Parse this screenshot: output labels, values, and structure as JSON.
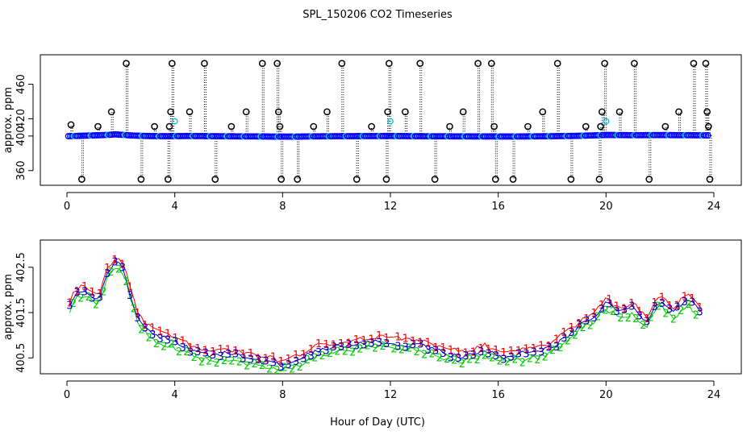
{
  "figure": {
    "title": "SPL_150206  CO2 Timeseries",
    "xlabel": "Hour of Day (UTC)"
  },
  "colors": {
    "circle_main": "#0000ff",
    "circle_alt": "#00c8c8",
    "spike": "#000000",
    "series1": "#ff0000",
    "series2": "#00cc00",
    "series3": "#0000cc",
    "inner_line": "#00c8c8"
  },
  "chart_data": [
    {
      "type": "scatter",
      "title": "SPL_150206  CO2 Timeseries",
      "xlabel": "",
      "ylabel": "approx. ppm",
      "xlim": [
        0,
        24
      ],
      "ylim": [
        343,
        494
      ],
      "xticks": [
        0,
        4,
        8,
        12,
        16,
        20,
        24
      ],
      "yticks": [
        360,
        400,
        420,
        460
      ],
      "ytick_labels": [
        "360",
        "400",
        "420",
        "460"
      ],
      "baseline": {
        "hours": [
          0.0,
          0.5,
          1.0,
          1.5,
          1.8,
          2.0,
          2.5,
          3.0,
          3.5,
          4.0,
          4.5,
          5.0,
          6.0,
          7.0,
          7.9,
          8.0,
          8.5,
          9.0,
          10.0,
          11.0,
          12.0,
          13.0,
          14.0,
          15.0,
          15.8,
          16.0,
          17.0,
          18.0,
          19.0,
          19.8,
          20.0,
          21.0,
          22.0,
          23.0,
          23.8
        ],
        "ppm": [
          400.8,
          401.2,
          401.6,
          402.0,
          402.6,
          402.2,
          401.4,
          401.0,
          400.8,
          400.9,
          401.0,
          400.9,
          400.7,
          400.6,
          400.4,
          400.5,
          400.4,
          400.6,
          400.8,
          400.9,
          401.0,
          400.8,
          400.7,
          400.6,
          400.6,
          400.5,
          400.6,
          400.8,
          401.2,
          401.8,
          402.0,
          401.8,
          401.9,
          401.8,
          401.6
        ]
      },
      "spikes": [
        {
          "x": 0.15,
          "y": 413
        },
        {
          "x": 0.55,
          "y": 350
        },
        {
          "x": 1.15,
          "y": 411
        },
        {
          "x": 1.65,
          "y": 428
        },
        {
          "x": 2.2,
          "y": 484
        },
        {
          "x": 2.75,
          "y": 350
        },
        {
          "x": 3.25,
          "y": 411
        },
        {
          "x": 3.75,
          "y": 350
        },
        {
          "x": 3.8,
          "y": 411
        },
        {
          "x": 3.85,
          "y": 428
        },
        {
          "x": 3.9,
          "y": 484
        },
        {
          "x": 4.55,
          "y": 428
        },
        {
          "x": 5.1,
          "y": 484
        },
        {
          "x": 5.5,
          "y": 350
        },
        {
          "x": 6.1,
          "y": 411
        },
        {
          "x": 6.65,
          "y": 428
        },
        {
          "x": 7.25,
          "y": 484
        },
        {
          "x": 7.8,
          "y": 484
        },
        {
          "x": 7.85,
          "y": 428
        },
        {
          "x": 7.9,
          "y": 411
        },
        {
          "x": 7.95,
          "y": 350
        },
        {
          "x": 8.55,
          "y": 350
        },
        {
          "x": 9.15,
          "y": 411
        },
        {
          "x": 9.65,
          "y": 428
        },
        {
          "x": 10.2,
          "y": 484
        },
        {
          "x": 10.75,
          "y": 350
        },
        {
          "x": 11.3,
          "y": 411
        },
        {
          "x": 11.85,
          "y": 350
        },
        {
          "x": 11.9,
          "y": 428
        },
        {
          "x": 11.95,
          "y": 484
        },
        {
          "x": 12.55,
          "y": 428
        },
        {
          "x": 13.1,
          "y": 484
        },
        {
          "x": 13.65,
          "y": 350
        },
        {
          "x": 14.2,
          "y": 411
        },
        {
          "x": 14.7,
          "y": 428
        },
        {
          "x": 15.25,
          "y": 484
        },
        {
          "x": 15.75,
          "y": 484
        },
        {
          "x": 15.85,
          "y": 411
        },
        {
          "x": 15.9,
          "y": 350
        },
        {
          "x": 16.55,
          "y": 350
        },
        {
          "x": 17.1,
          "y": 411
        },
        {
          "x": 17.65,
          "y": 428
        },
        {
          "x": 18.2,
          "y": 484
        },
        {
          "x": 18.7,
          "y": 350
        },
        {
          "x": 19.25,
          "y": 411
        },
        {
          "x": 19.75,
          "y": 350
        },
        {
          "x": 19.8,
          "y": 411
        },
        {
          "x": 19.85,
          "y": 428
        },
        {
          "x": 19.95,
          "y": 484
        },
        {
          "x": 20.5,
          "y": 428
        },
        {
          "x": 21.05,
          "y": 484
        },
        {
          "x": 21.6,
          "y": 350
        },
        {
          "x": 22.2,
          "y": 411
        },
        {
          "x": 22.7,
          "y": 428
        },
        {
          "x": 23.25,
          "y": 484
        },
        {
          "x": 23.7,
          "y": 484
        },
        {
          "x": 23.75,
          "y": 428
        },
        {
          "x": 23.8,
          "y": 411
        },
        {
          "x": 23.85,
          "y": 350
        }
      ],
      "highlights": [
        {
          "x": 4.0,
          "y": 417
        },
        {
          "x": 12.0,
          "y": 417
        },
        {
          "x": 20.0,
          "y": 417
        }
      ]
    },
    {
      "type": "line",
      "title": "",
      "xlabel": "Hour of Day (UTC)",
      "ylabel": "approx. ppm",
      "xlim": [
        0,
        24
      ],
      "ylim": [
        400.15,
        403.1
      ],
      "xticks": [
        0,
        4,
        8,
        12,
        16,
        20,
        24
      ],
      "yticks": [
        400.5,
        401.5,
        402.5
      ],
      "ytick_labels": [
        "400.5",
        "401.5",
        "402.5"
      ],
      "series": [
        {
          "name": "1",
          "offset": 0.1
        },
        {
          "name": "2",
          "offset": -0.12
        },
        {
          "name": "3",
          "offset": 0.0
        }
      ],
      "knots": {
        "hours": [
          0.0,
          0.3,
          0.6,
          0.9,
          1.2,
          1.5,
          1.8,
          2.1,
          2.4,
          2.7,
          3.0,
          3.5,
          4.0,
          4.5,
          5.0,
          5.5,
          6.0,
          6.5,
          7.0,
          7.5,
          8.0,
          8.5,
          9.0,
          9.5,
          10.0,
          10.5,
          11.0,
          11.5,
          12.0,
          12.5,
          13.0,
          13.5,
          14.0,
          14.5,
          15.0,
          15.5,
          16.0,
          16.5,
          17.0,
          17.5,
          18.0,
          18.5,
          19.0,
          19.5,
          20.0,
          20.5,
          21.0,
          21.5,
          22.0,
          22.5,
          23.0,
          23.5
        ],
        "ppm": [
          401.5,
          401.9,
          402.0,
          401.9,
          401.8,
          402.4,
          402.6,
          402.5,
          401.8,
          401.3,
          401.1,
          400.95,
          400.85,
          400.7,
          400.6,
          400.55,
          400.6,
          400.55,
          400.45,
          400.4,
          400.35,
          400.45,
          400.6,
          400.7,
          400.75,
          400.8,
          400.85,
          400.85,
          400.85,
          400.8,
          400.8,
          400.7,
          400.6,
          400.55,
          400.55,
          400.7,
          400.5,
          400.55,
          400.6,
          400.65,
          400.75,
          400.95,
          401.2,
          401.4,
          401.7,
          401.5,
          401.6,
          401.3,
          401.8,
          401.5,
          401.8,
          401.55
        ]
      }
    }
  ]
}
